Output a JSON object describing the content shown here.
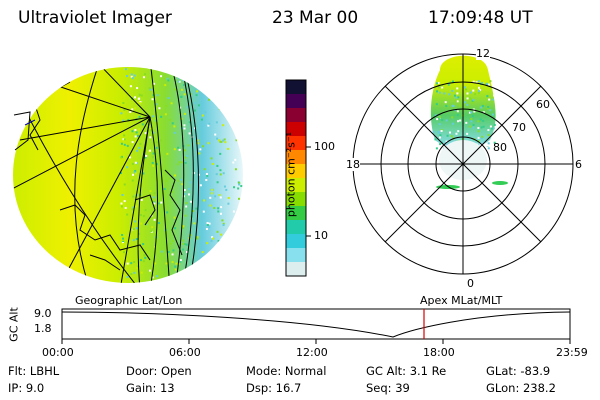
{
  "header": {
    "title": "Ultraviolet Imager",
    "date": "23 Mar 00",
    "time": "17:09:48 UT"
  },
  "colorbar": {
    "unit_label": "photon cm⁻²s⁻¹",
    "ticks": [
      "100",
      "10"
    ],
    "colors": [
      "#111133",
      "#440055",
      "#8a0030",
      "#cc0000",
      "#ff3300",
      "#ff8800",
      "#ffcc00",
      "#ccee00",
      "#88dd00",
      "#33cc44",
      "#22ccaa",
      "#33ccdd",
      "#88e0ee",
      "#ddeeee"
    ]
  },
  "polar_plot": {
    "clock_labels": [
      "12",
      "18",
      "6",
      "0"
    ],
    "lat_labels": [
      "60",
      "70",
      "80"
    ]
  },
  "timeline": {
    "left_label": "Geographic Lat/Lon",
    "right_label": "Apex MLat/MLT",
    "y_axis_label": "GC Alt",
    "y_ticks": [
      "9.0",
      "1.8"
    ],
    "x_ticks": [
      "00:00",
      "06:00",
      "12:00",
      "18:00",
      "23:59"
    ],
    "current_time_marker_color": "#dd0000"
  },
  "info": {
    "filter": "Flt: LBHL",
    "ip": "IP: 9.0",
    "door": "Door: Open",
    "gain": "Gain: 13",
    "mode": "Mode: Normal",
    "dsp": "Dsp: 16.7",
    "gc_alt": "GC Alt: 3.1 Re",
    "seq": "Seq: 39",
    "glat": "GLat: -83.9",
    "glon": "GLon: 238.2"
  }
}
